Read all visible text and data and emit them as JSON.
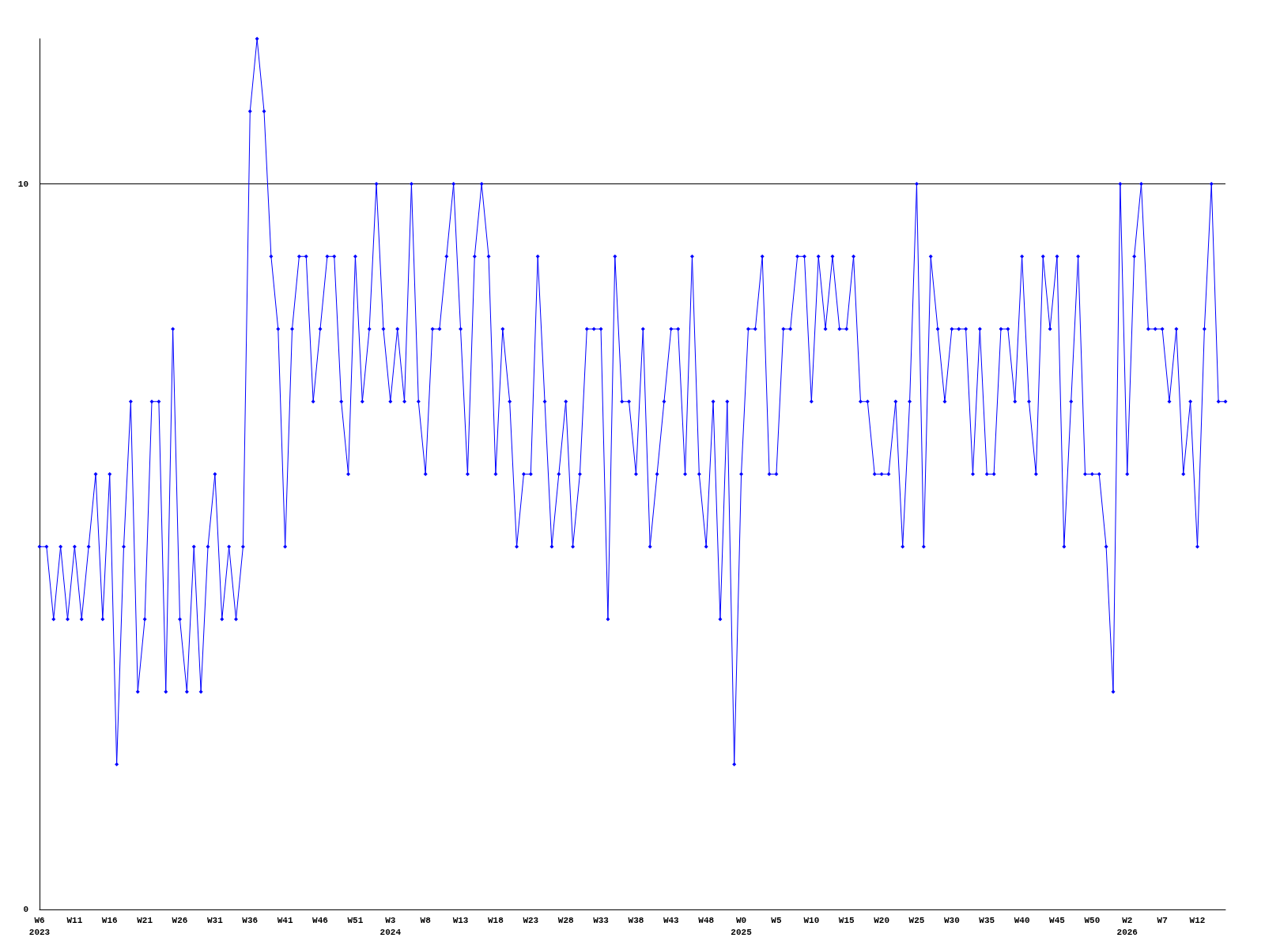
{
  "chart_data": {
    "type": "line",
    "categories": [
      "W6\n2023",
      null,
      null,
      null,
      null,
      "W11",
      null,
      null,
      null,
      null,
      "W16",
      null,
      null,
      null,
      null,
      "W21",
      null,
      null,
      null,
      null,
      "W26",
      null,
      null,
      null,
      null,
      "W31",
      null,
      null,
      null,
      null,
      "W36",
      null,
      null,
      null,
      null,
      "W41",
      null,
      null,
      null,
      null,
      "W46",
      null,
      null,
      null,
      null,
      "W51",
      null,
      null,
      null,
      null,
      "W3\n2024",
      null,
      null,
      null,
      null,
      "W8",
      null,
      null,
      null,
      null,
      "W13",
      null,
      null,
      null,
      null,
      "W18",
      null,
      null,
      null,
      null,
      "W23",
      null,
      null,
      null,
      null,
      "W28",
      null,
      null,
      null,
      null,
      "W33",
      null,
      null,
      null,
      null,
      "W38",
      null,
      null,
      null,
      null,
      "W43",
      null,
      null,
      null,
      null,
      "W48",
      null,
      null,
      null,
      null,
      "W0\n2025",
      null,
      null,
      null,
      null,
      "W5",
      null,
      null,
      null,
      null,
      "W10",
      null,
      null,
      null,
      null,
      "W15",
      null,
      null,
      null,
      null,
      "W20",
      null,
      null,
      null,
      null,
      "W25",
      null,
      null,
      null,
      null,
      "W30",
      null,
      null,
      null,
      null,
      "W35",
      null,
      null,
      null,
      null,
      "W40",
      null,
      null,
      null,
      null,
      "W45",
      null,
      null,
      null,
      null,
      "W50",
      null,
      null,
      null,
      null,
      "W2\n2026",
      null,
      null,
      null,
      null,
      "W7",
      null,
      null,
      null,
      null,
      "W12",
      null,
      null,
      null,
      null
    ],
    "series": [
      {
        "color": "#0000ff",
        "values": [
          5,
          5,
          4,
          5,
          4,
          5,
          4,
          5,
          6,
          4,
          6,
          2,
          5,
          7,
          3,
          4,
          7,
          7,
          3,
          8,
          4,
          3,
          5,
          3,
          5,
          6,
          4,
          5,
          4,
          5,
          11,
          12,
          11,
          9,
          8,
          5,
          8,
          9,
          9,
          7,
          8,
          9,
          9,
          7,
          6,
          9,
          7,
          8,
          10,
          8,
          7,
          8,
          7,
          10,
          7,
          6,
          8,
          8,
          9,
          10,
          8,
          6,
          9,
          10,
          9,
          6,
          8,
          7,
          5,
          6,
          6,
          9,
          7,
          5,
          6,
          7,
          5,
          6,
          8,
          8,
          8,
          4,
          9,
          7,
          7,
          6,
          8,
          5,
          6,
          7,
          8,
          8,
          6,
          9,
          6,
          5,
          7,
          4,
          7,
          2,
          6,
          8,
          8,
          9,
          6,
          6,
          8,
          8,
          9,
          9,
          7,
          9,
          8,
          9,
          8,
          8,
          9,
          7,
          7,
          6,
          6,
          6,
          7,
          5,
          7,
          10,
          5,
          9,
          8,
          7,
          8,
          8,
          8,
          6,
          8,
          6,
          6,
          8,
          8,
          7,
          9,
          7,
          6,
          9,
          8,
          9,
          5,
          7,
          9,
          6,
          6,
          6,
          5,
          3,
          10,
          6,
          9,
          10,
          8,
          8,
          8,
          7,
          8,
          6,
          7,
          5,
          8,
          10,
          7,
          7
        ]
      }
    ],
    "ylim": [
      0,
      12
    ],
    "yticks": [
      0,
      10
    ],
    "grid": "y",
    "marker": "diamond",
    "line_style": "solid"
  }
}
